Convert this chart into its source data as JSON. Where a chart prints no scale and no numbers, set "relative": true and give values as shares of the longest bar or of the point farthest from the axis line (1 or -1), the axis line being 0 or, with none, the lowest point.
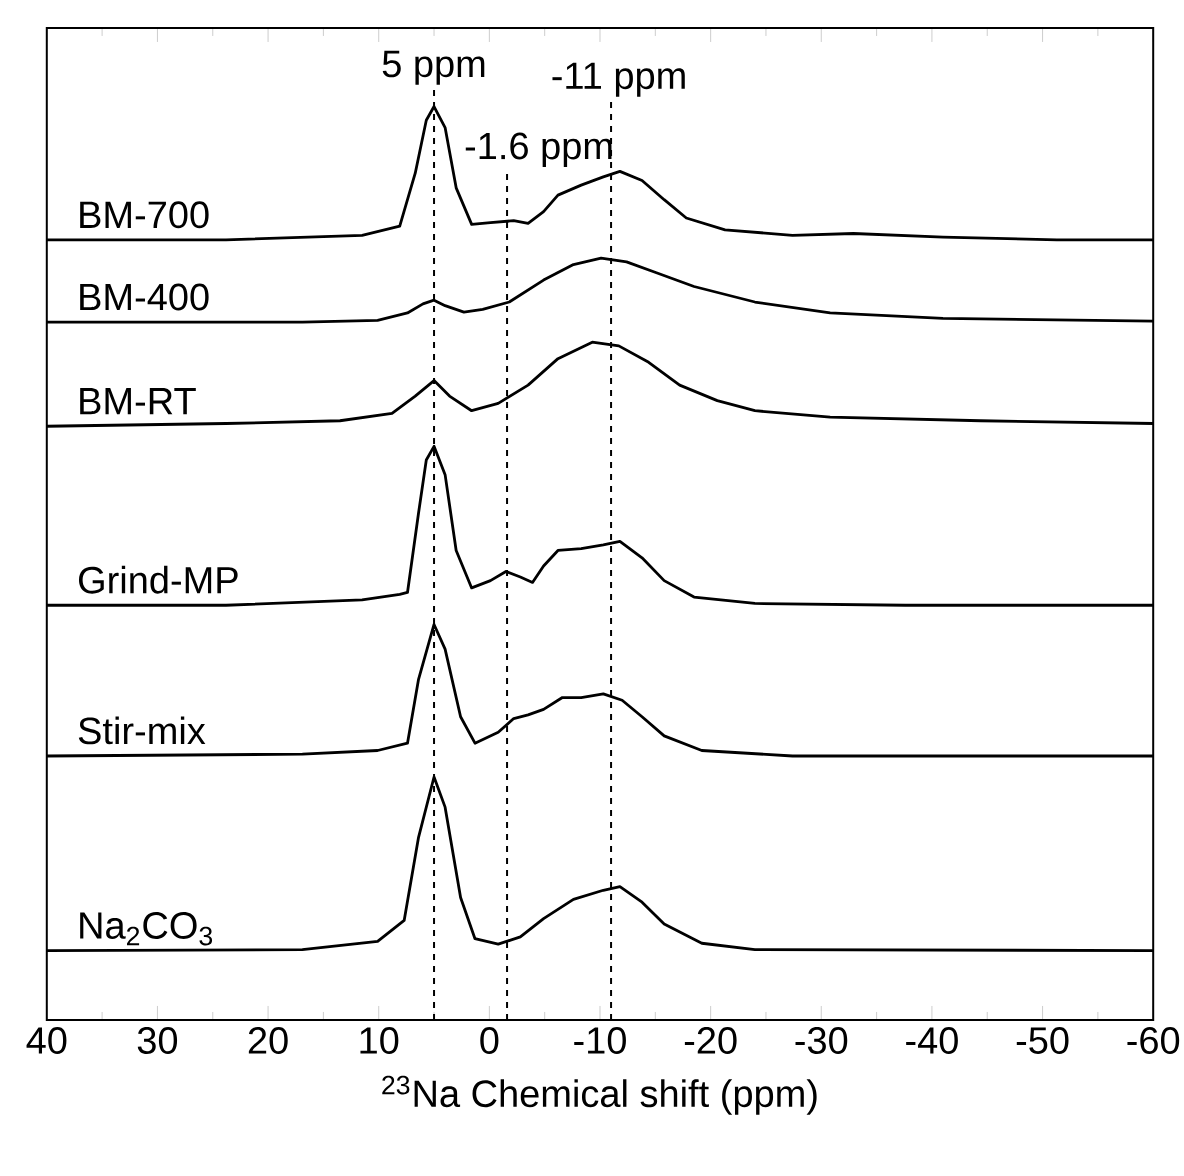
{
  "chart_data": {
    "type": "line",
    "relative": true,
    "xlabel": "$^{23}$Na Chemical shift (ppm)",
    "xlim": [
      40,
      -60
    ],
    "xticks": [
      40,
      30,
      20,
      10,
      0,
      -10,
      -20,
      -30,
      -40,
      -50,
      -60
    ],
    "series": [
      {
        "name": "BM-700",
        "color": "#000000",
        "x": [
          40,
          23.8,
          11.5,
          8.1,
          6.7,
          5.7,
          5.0,
          4.0,
          3.0,
          1.6,
          -0.1,
          -2.2,
          -3.5,
          -4.9,
          -6.2,
          -8.3,
          -10.3,
          -11.8,
          -13.8,
          -15.8,
          -17.8,
          -21.3,
          -27.4,
          -32.9,
          -41.0,
          -51.3,
          -60
        ],
        "values": [
          0.854,
          0.854,
          0.859,
          0.869,
          0.927,
          0.985,
          1.0,
          0.977,
          0.911,
          0.871,
          0.873,
          0.875,
          0.872,
          0.885,
          0.903,
          0.914,
          0.923,
          0.929,
          0.919,
          0.898,
          0.878,
          0.865,
          0.859,
          0.861,
          0.857,
          0.854,
          0.854
        ]
      },
      {
        "name": "BM-400",
        "color": "#000000",
        "x": [
          40,
          16.9,
          10.1,
          7.4,
          6.0,
          5.0,
          4.0,
          2.3,
          0.6,
          -1.8,
          -4.9,
          -7.6,
          -10.1,
          -12.4,
          -15.1,
          -18.5,
          -24.0,
          -30.8,
          -41.0,
          -60
        ],
        "values": [
          0.764,
          0.764,
          0.766,
          0.774,
          0.784,
          0.788,
          0.782,
          0.775,
          0.778,
          0.786,
          0.81,
          0.827,
          0.834,
          0.83,
          0.818,
          0.803,
          0.786,
          0.774,
          0.768,
          0.765
        ]
      },
      {
        "name": "BM-RT",
        "color": "#000000",
        "x": [
          40,
          23.8,
          13.5,
          8.8,
          6.7,
          5.0,
          3.6,
          1.6,
          -0.8,
          -3.5,
          -6.2,
          -9.3,
          -11.7,
          -14.4,
          -17.2,
          -20.6,
          -24.0,
          -30.8,
          -44.4,
          -60
        ],
        "values": [
          0.65,
          0.653,
          0.656,
          0.664,
          0.683,
          0.7,
          0.683,
          0.667,
          0.675,
          0.695,
          0.724,
          0.742,
          0.738,
          0.72,
          0.695,
          0.678,
          0.667,
          0.66,
          0.656,
          0.653
        ]
      },
      {
        "name": "Grind-MP",
        "color": "#000000",
        "x": [
          40,
          23.8,
          11.5,
          8.1,
          7.4,
          6.4,
          5.7,
          5.0,
          4.0,
          3.0,
          1.6,
          -0.1,
          -1.5,
          -2.8,
          -3.9,
          -4.9,
          -6.2,
          -8.3,
          -10.3,
          -11.8,
          -13.8,
          -15.8,
          -18.5,
          -24.0,
          -37.6,
          -60
        ],
        "values": [
          0.454,
          0.454,
          0.46,
          0.466,
          0.468,
          0.555,
          0.613,
          0.628,
          0.597,
          0.514,
          0.473,
          0.481,
          0.491,
          0.485,
          0.479,
          0.497,
          0.514,
          0.516,
          0.52,
          0.524,
          0.506,
          0.481,
          0.463,
          0.456,
          0.454,
          0.454
        ]
      },
      {
        "name": "Stir-mix",
        "color": "#000000",
        "x": [
          40,
          16.9,
          10.1,
          7.4,
          6.4,
          5.0,
          4.0,
          2.6,
          1.3,
          -0.8,
          -2.2,
          -3.5,
          -4.9,
          -6.6,
          -8.3,
          -10.3,
          -12.0,
          -13.8,
          -15.8,
          -19.2,
          -27.4,
          -60
        ],
        "values": [
          0.289,
          0.291,
          0.295,
          0.303,
          0.373,
          0.433,
          0.406,
          0.332,
          0.303,
          0.315,
          0.33,
          0.334,
          0.34,
          0.353,
          0.353,
          0.357,
          0.35,
          0.332,
          0.311,
          0.295,
          0.289,
          0.289
        ]
      },
      {
        "name": "Na$_{2}$CO$_{3}$",
        "color": "#000000",
        "x": [
          40,
          16.9,
          10.1,
          7.7,
          6.4,
          5.0,
          4.0,
          2.6,
          1.3,
          -0.8,
          -2.8,
          -4.9,
          -7.6,
          -10.3,
          -11.8,
          -13.8,
          -15.8,
          -19.2,
          -24.0,
          -60
        ],
        "values": [
          0.076,
          0.077,
          0.086,
          0.109,
          0.2,
          0.266,
          0.233,
          0.134,
          0.089,
          0.083,
          0.091,
          0.111,
          0.132,
          0.142,
          0.146,
          0.129,
          0.105,
          0.084,
          0.077,
          0.076
        ]
      }
    ],
    "ref_lines": [
      {
        "axis": "x",
        "value": 5,
        "label": "5 ppm",
        "line_style": "dashed",
        "color": "#000000"
      },
      {
        "axis": "x",
        "value": -1.6,
        "label": "-1.6 ppm",
        "line_style": "dashed",
        "color": "#000000"
      },
      {
        "axis": "x",
        "value": -11,
        "label": "-11 ppm",
        "line_style": "dashed",
        "color": "#000000"
      }
    ]
  }
}
